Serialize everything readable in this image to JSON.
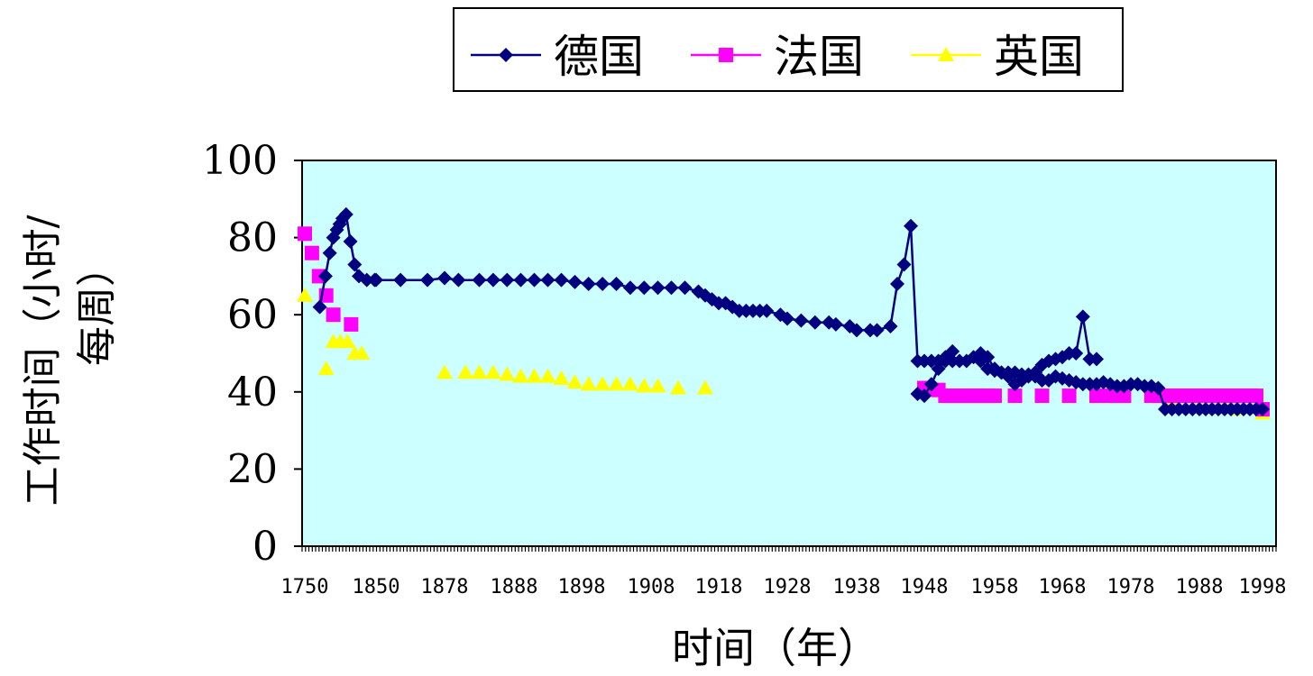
{
  "chart_data": {
    "type": "line",
    "title": "",
    "xlabel": "时间（年）",
    "ylabel": "工作时间（小时/每周）",
    "ylim": [
      0,
      100
    ],
    "yticks": [
      "0",
      "20",
      "40",
      "60",
      "80",
      "100"
    ],
    "xtick_labels": [
      "1750",
      "1850",
      "1878",
      "1888",
      "1898",
      "1908",
      "1918",
      "1928",
      "1938",
      "1948",
      "1958",
      "1968",
      "1978",
      "1988",
      "1998"
    ],
    "plot_background": "#ccffff",
    "legend_position": "top",
    "series": [
      {
        "name": "德国",
        "color": "#000080",
        "marker": "diamond",
        "segments": [
          [
            [
              1771,
              62
            ],
            [
              1779,
              70
            ],
            [
              1785,
              76
            ],
            [
              1790,
              80
            ],
            [
              1795,
              82
            ],
            [
              1799,
              83.5
            ],
            [
              1803,
              85
            ],
            [
              1808,
              86
            ],
            [
              1814,
              79
            ],
            [
              1820,
              73
            ],
            [
              1826,
              70
            ],
            [
              1837,
              69
            ],
            [
              1848,
              69
            ],
            [
              1850,
              69
            ],
            [
              1860,
              69
            ],
            [
              1871,
              69
            ],
            [
              1878,
              69.5
            ],
            [
              1880,
              69
            ],
            [
              1883,
              69
            ],
            [
              1885,
              69
            ],
            [
              1887,
              69
            ],
            [
              1889,
              69
            ],
            [
              1891,
              69
            ],
            [
              1893,
              69
            ],
            [
              1895,
              69
            ],
            [
              1897,
              68.5
            ],
            [
              1899,
              68
            ],
            [
              1901,
              68
            ],
            [
              1903,
              68
            ],
            [
              1905,
              67
            ],
            [
              1907,
              67
            ],
            [
              1909,
              67
            ],
            [
              1911,
              67
            ],
            [
              1913,
              67
            ],
            [
              1915,
              66
            ],
            [
              1916,
              65
            ],
            [
              1917,
              64
            ],
            [
              1918,
              63
            ],
            [
              1919,
              63
            ],
            [
              1920,
              62
            ],
            [
              1921,
              61
            ],
            [
              1922,
              61
            ],
            [
              1923,
              61
            ],
            [
              1924,
              61
            ],
            [
              1925,
              61
            ],
            [
              1927,
              60
            ],
            [
              1928,
              59
            ],
            [
              1930,
              58.5
            ],
            [
              1932,
              58
            ],
            [
              1934,
              58
            ],
            [
              1935,
              57.5
            ],
            [
              1937,
              57
            ],
            [
              1938,
              56
            ],
            [
              1940,
              56
            ],
            [
              1941,
              56
            ],
            [
              1943,
              57
            ],
            [
              1944,
              68
            ],
            [
              1945,
              73
            ],
            [
              1946,
              83
            ],
            [
              1947,
              48
            ],
            [
              1948,
              48
            ],
            [
              1949,
              48
            ],
            [
              1950,
              48
            ],
            [
              1951,
              49
            ],
            [
              1952,
              50.5
            ]
          ],
          [
            [
              1956,
              50
            ],
            [
              1957,
              49
            ],
            [
              1958,
              46
            ],
            [
              1959,
              45
            ],
            [
              1960,
              44
            ],
            [
              1961,
              42
            ],
            [
              1962,
              43
            ],
            [
              1963,
              44.5
            ],
            [
              1964,
              45
            ],
            [
              1965,
              47
            ],
            [
              1966,
              48
            ],
            [
              1967,
              48.5
            ],
            [
              1968,
              49
            ],
            [
              1969,
              50
            ],
            [
              1970,
              50
            ],
            [
              1971,
              59.5
            ],
            [
              1972,
              48.5
            ],
            [
              1973,
              48.5
            ]
          ],
          [
            [
              1947,
              39.5
            ],
            [
              1948,
              39
            ],
            [
              1949,
              42
            ],
            [
              1950,
              46
            ],
            [
              1951,
              48
            ],
            [
              1952,
              48
            ],
            [
              1953,
              48
            ],
            [
              1954,
              48
            ],
            [
              1955,
              49
            ],
            [
              1956,
              48
            ],
            [
              1957,
              46
            ],
            [
              1958,
              45.5
            ],
            [
              1959,
              45
            ],
            [
              1960,
              45
            ],
            [
              1961,
              45
            ],
            [
              1962,
              44.5
            ],
            [
              1963,
              44
            ],
            [
              1964,
              44
            ],
            [
              1965,
              43
            ],
            [
              1966,
              43
            ],
            [
              1967,
              44
            ],
            [
              1968,
              43.5
            ],
            [
              1969,
              43
            ],
            [
              1970,
              42.5
            ],
            [
              1971,
              42
            ],
            [
              1972,
              42
            ],
            [
              1973,
              42
            ],
            [
              1974,
              42.5
            ],
            [
              1975,
              42
            ],
            [
              1976,
              41.5
            ],
            [
              1977,
              41.5
            ],
            [
              1978,
              42
            ],
            [
              1979,
              42
            ],
            [
              1980,
              41.5
            ],
            [
              1981,
              41.5
            ],
            [
              1982,
              41
            ],
            [
              1983,
              35.5
            ],
            [
              1984,
              35.5
            ],
            [
              1985,
              35.5
            ],
            [
              1986,
              35.5
            ],
            [
              1987,
              35.5
            ],
            [
              1988,
              35.5
            ],
            [
              1989,
              35.5
            ],
            [
              1990,
              35.5
            ],
            [
              1991,
              35.5
            ],
            [
              1992,
              35.5
            ],
            [
              1993,
              35.5
            ],
            [
              1994,
              35.5
            ],
            [
              1995,
              35.5
            ],
            [
              1996,
              35.5
            ],
            [
              1997,
              35.5
            ],
            [
              1998,
              35.5
            ]
          ]
        ]
      },
      {
        "name": "法国",
        "color": "#ff00ff",
        "marker": "square",
        "points": [
          [
            1750,
            81
          ],
          [
            1760,
            76
          ],
          [
            1770,
            70
          ],
          [
            1780,
            65
          ],
          [
            1790,
            60
          ],
          [
            1815,
            57.5
          ],
          [
            1948,
            41
          ],
          [
            1950,
            40.5
          ],
          [
            1951,
            39
          ],
          [
            1952,
            39
          ],
          [
            1953,
            39
          ],
          [
            1954,
            39
          ],
          [
            1955,
            39
          ],
          [
            1956,
            39
          ],
          [
            1957,
            39
          ],
          [
            1958,
            39
          ],
          [
            1961,
            39
          ],
          [
            1965,
            39
          ],
          [
            1969,
            39
          ],
          [
            1973,
            39
          ],
          [
            1975,
            39
          ],
          [
            1976,
            39
          ],
          [
            1977,
            39
          ],
          [
            1981,
            39
          ],
          [
            1983,
            39
          ],
          [
            1984,
            39
          ],
          [
            1985,
            39
          ],
          [
            1986,
            39
          ],
          [
            1987,
            39
          ],
          [
            1988,
            39
          ],
          [
            1989,
            39
          ],
          [
            1990,
            39
          ],
          [
            1991,
            39
          ],
          [
            1992,
            39
          ],
          [
            1993,
            39
          ],
          [
            1994,
            39
          ],
          [
            1995,
            39
          ],
          [
            1996,
            39
          ],
          [
            1997,
            39
          ],
          [
            1998,
            35.5
          ]
        ]
      },
      {
        "name": "英国",
        "color": "#ffff00",
        "marker": "triangle",
        "points": [
          [
            1750,
            65
          ],
          [
            1780,
            46
          ],
          [
            1790,
            53
          ],
          [
            1800,
            53
          ],
          [
            1810,
            53
          ],
          [
            1820,
            50
          ],
          [
            1830,
            50
          ],
          [
            1878,
            45
          ],
          [
            1881,
            45
          ],
          [
            1883,
            45
          ],
          [
            1885,
            45
          ],
          [
            1887,
            44.5
          ],
          [
            1889,
            44
          ],
          [
            1891,
            44
          ],
          [
            1893,
            44
          ],
          [
            1895,
            43.5
          ],
          [
            1897,
            42.5
          ],
          [
            1899,
            42
          ],
          [
            1901,
            42
          ],
          [
            1903,
            42
          ],
          [
            1905,
            42
          ],
          [
            1907,
            41.5
          ],
          [
            1909,
            41.5
          ],
          [
            1912,
            41
          ],
          [
            1916,
            41
          ],
          [
            1984,
            37.5
          ],
          [
            1988,
            36
          ],
          [
            1992,
            36
          ],
          [
            1994,
            35.5
          ],
          [
            1998,
            34.5
          ]
        ]
      }
    ]
  }
}
